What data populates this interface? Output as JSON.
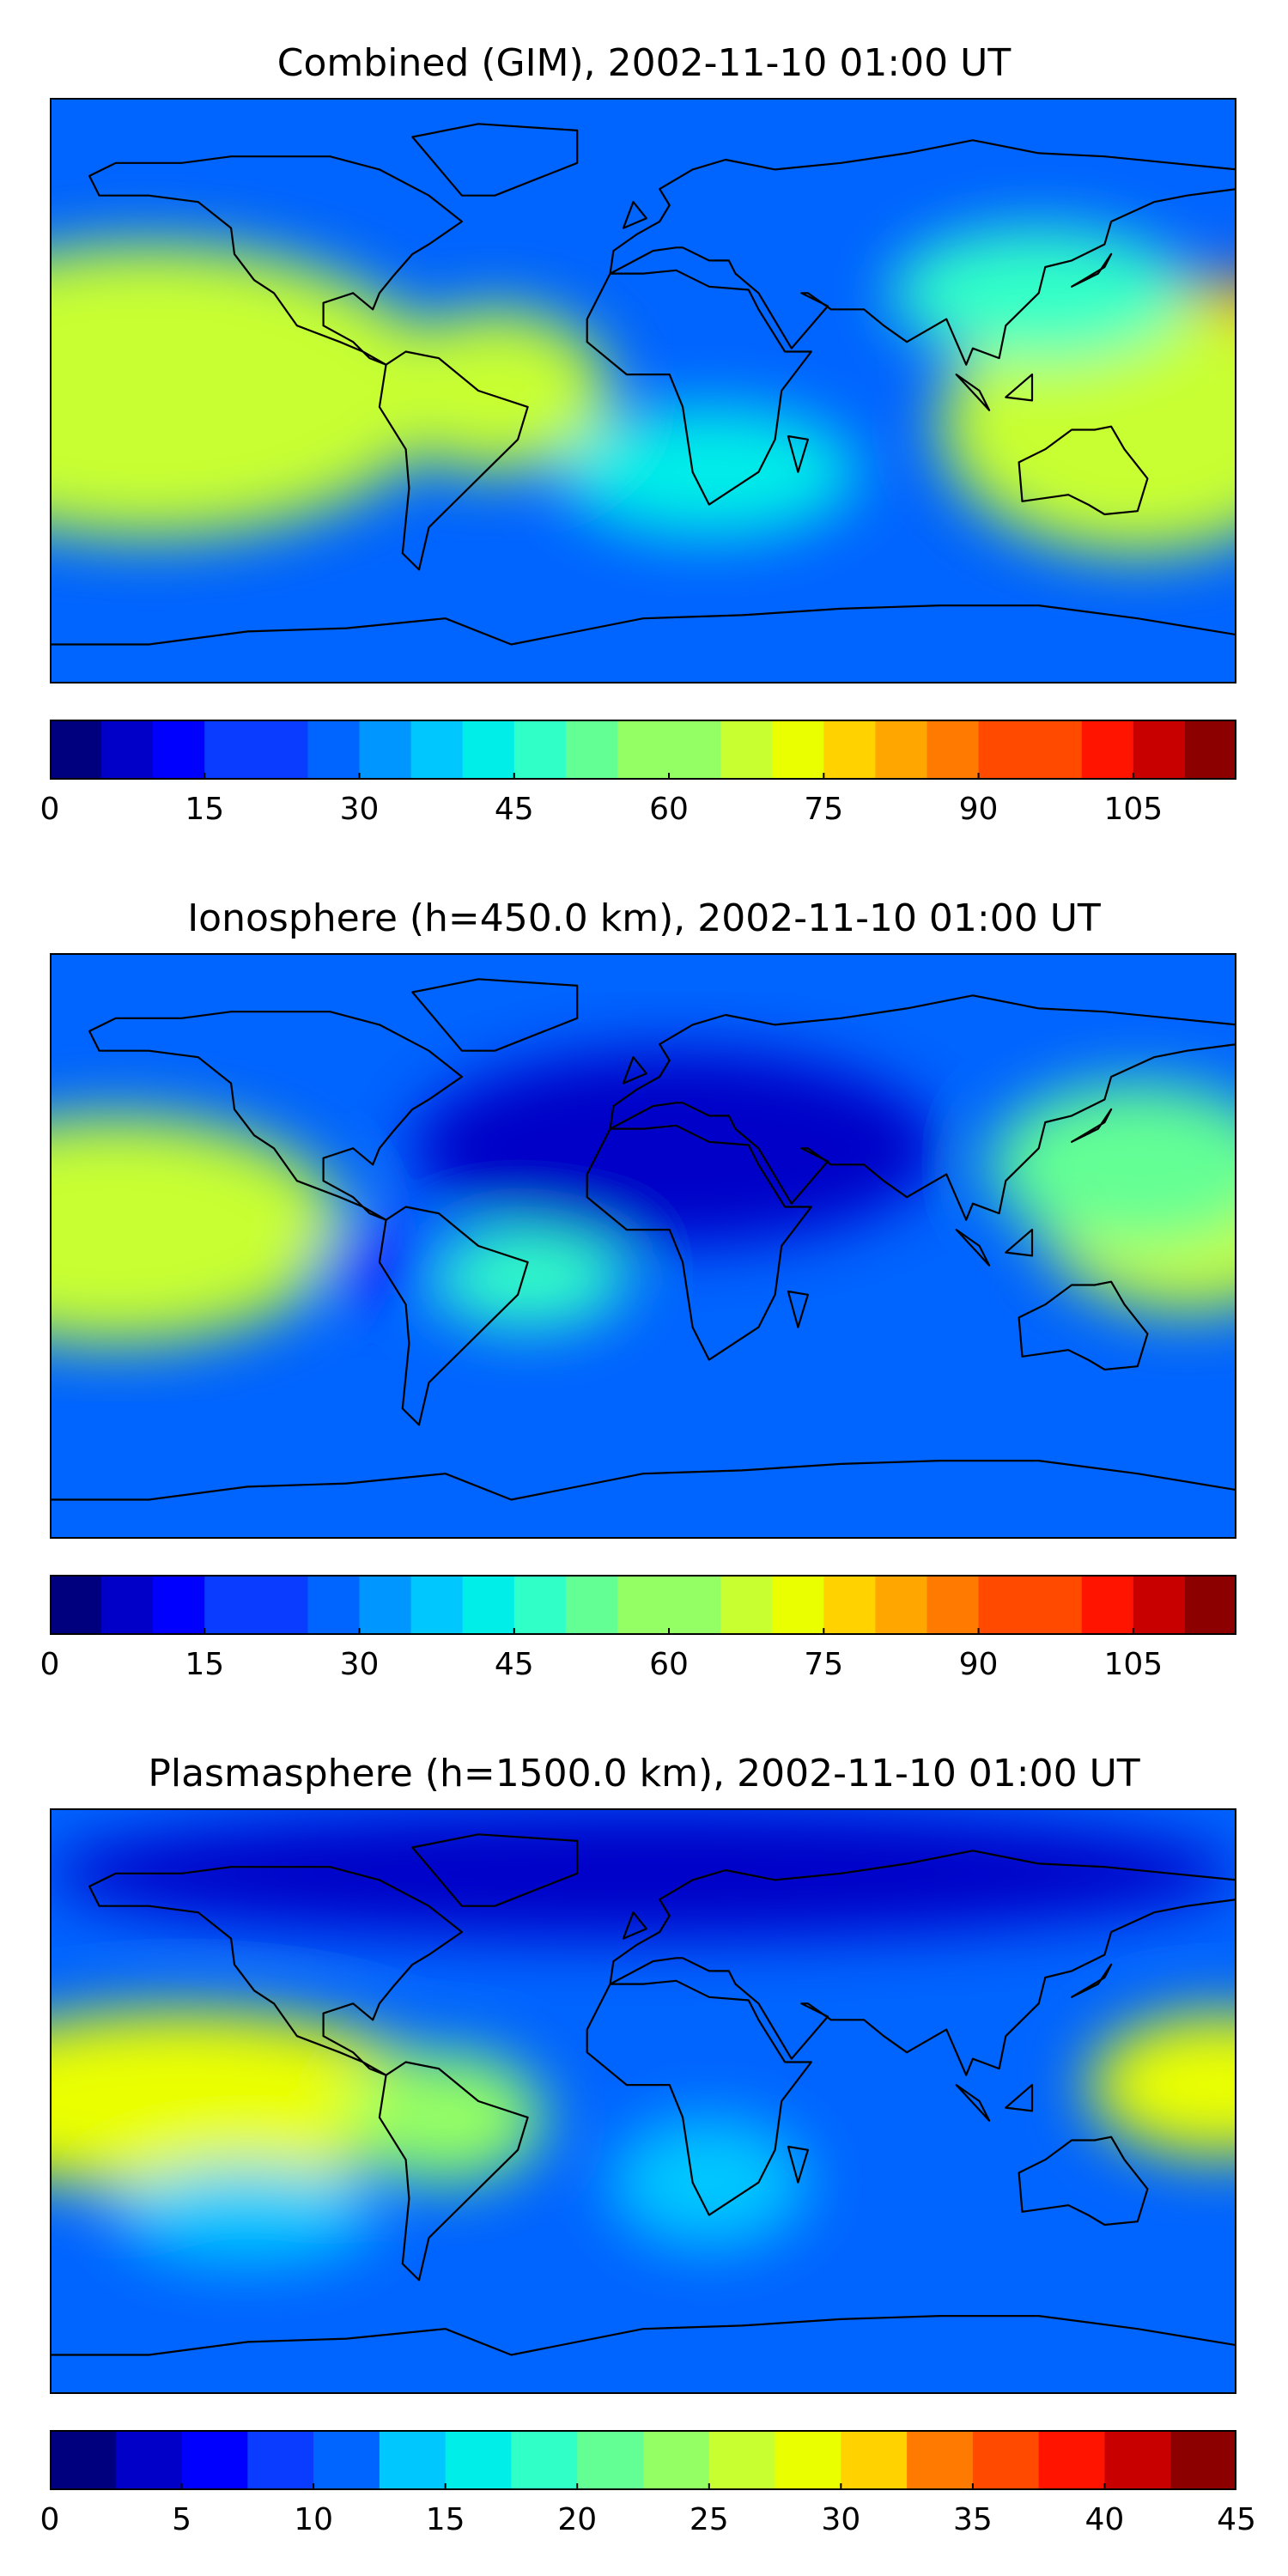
{
  "colors": [
    "#00007f",
    "#0000c8",
    "#0000ff",
    "#0a3cff",
    "#0064ff",
    "#0096ff",
    "#00c8ff",
    "#00eee8",
    "#30ffc8",
    "#64ff94",
    "#94ff64",
    "#c8ff30",
    "#eaff00",
    "#ffd200",
    "#ffa600",
    "#ff7a00",
    "#ff4a00",
    "#ff1400",
    "#c80000",
    "#8c0000"
  ],
  "panels": [
    {
      "title": "Combined (GIM), 2002-11-10 01:00 UT",
      "colorbar": {
        "ticks": [
          "0",
          "15",
          "30",
          "45",
          "60",
          "75",
          "90",
          "105"
        ],
        "segments": 23
      },
      "blobs": [
        {
          "lon": -165,
          "lat": 5,
          "rx": 35,
          "ry": 18,
          "v": 19
        },
        {
          "lon": -165,
          "lat": 5,
          "rx": 60,
          "ry": 32,
          "v": 15
        },
        {
          "lon": -150,
          "lat": 0,
          "rx": 90,
          "ry": 45,
          "v": 11
        },
        {
          "lon": -45,
          "lat": 0,
          "rx": 35,
          "ry": 25,
          "v": 11
        },
        {
          "lon": 175,
          "lat": 5,
          "rx": 50,
          "ry": 30,
          "v": 15
        },
        {
          "lon": 150,
          "lat": -10,
          "rx": 60,
          "ry": 40,
          "v": 11
        },
        {
          "lon": 20,
          "lat": -25,
          "rx": 45,
          "ry": 20,
          "v": 7
        },
        {
          "lon": 120,
          "lat": 30,
          "rx": 45,
          "ry": 20,
          "v": 8
        }
      ]
    },
    {
      "title": "Ionosphere  (h=450.0 km), 2002-11-10 01:00 UT",
      "colorbar": {
        "ticks": [
          "0",
          "15",
          "30",
          "45",
          "60",
          "75",
          "90",
          "105"
        ],
        "segments": 23
      },
      "blobs": [
        {
          "lon": -155,
          "lat": 15,
          "rx": 30,
          "ry": 12,
          "v": 14
        },
        {
          "lon": -160,
          "lat": 5,
          "rx": 70,
          "ry": 35,
          "v": 11
        },
        {
          "lon": -35,
          "lat": -10,
          "rx": 30,
          "ry": 15,
          "v": 8
        },
        {
          "lon": 165,
          "lat": 10,
          "rx": 45,
          "ry": 30,
          "v": 11
        },
        {
          "lon": 150,
          "lat": 25,
          "rx": 45,
          "ry": 25,
          "v": 9
        },
        {
          "lon": -80,
          "lat": -5,
          "rx": 20,
          "ry": 10,
          "v": 2
        },
        {
          "lon": 10,
          "lat": 30,
          "rx": 80,
          "ry": 30,
          "v": 1
        }
      ]
    },
    {
      "title": "Plasmasphere (h=1500.0 km), 2002-11-10 01:00 UT",
      "colorbar": {
        "ticks": [
          "0",
          "5",
          "10",
          "15",
          "20",
          "25",
          "30",
          "35",
          "40",
          "45"
        ],
        "segments": 18
      },
      "blobs": [
        {
          "lon": -105,
          "lat": 0,
          "rx": 20,
          "ry": 12,
          "v": 16
        },
        {
          "lon": -155,
          "lat": 2,
          "rx": 30,
          "ry": 12,
          "v": 14
        },
        {
          "lon": -140,
          "lat": 0,
          "rx": 80,
          "ry": 28,
          "v": 12
        },
        {
          "lon": -60,
          "lat": -5,
          "rx": 30,
          "ry": 20,
          "v": 10
        },
        {
          "lon": 175,
          "lat": 5,
          "rx": 40,
          "ry": 22,
          "v": 12
        },
        {
          "lon": 20,
          "lat": -25,
          "rx": 30,
          "ry": 20,
          "v": 6
        },
        {
          "lon": -120,
          "lat": -35,
          "rx": 40,
          "ry": 15,
          "v": 6
        },
        {
          "lon": 0,
          "lat": 70,
          "rx": 180,
          "ry": 20,
          "v": 1
        }
      ]
    }
  ]
}
